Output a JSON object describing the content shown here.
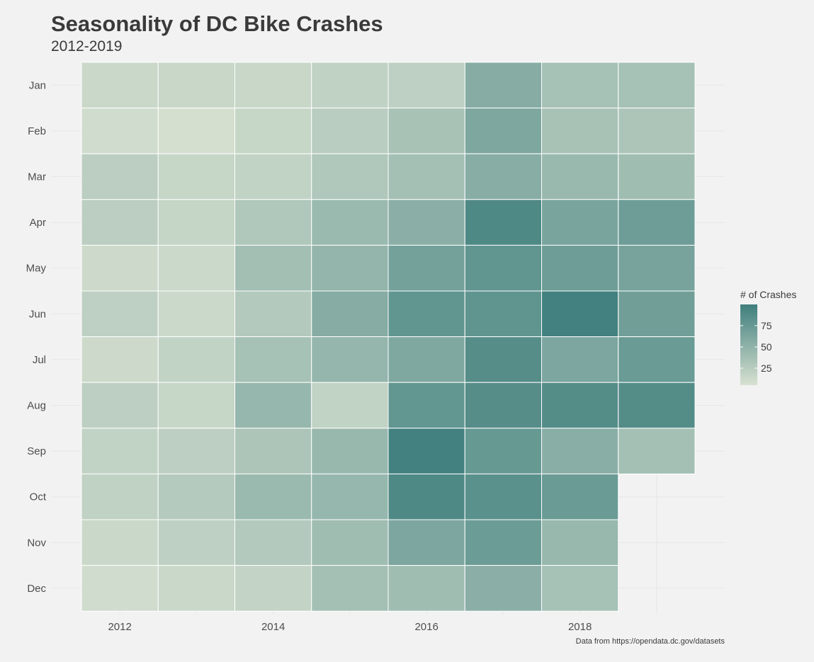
{
  "chart_data": {
    "type": "heatmap",
    "title": "Seasonality of DC Bike Crashes",
    "subtitle": "2012-2019",
    "caption": "Data from https://opendata.dc.gov/datasets",
    "x_tick_labels": [
      "2012",
      "2014",
      "2016",
      "2018"
    ],
    "x_tick_values": [
      2012,
      2014,
      2016,
      2018
    ],
    "x_categories": [
      2012,
      2013,
      2014,
      2015,
      2016,
      2017,
      2018,
      2019
    ],
    "y_categories": [
      "Jan",
      "Feb",
      "Mar",
      "Apr",
      "May",
      "Jun",
      "Jul",
      "Aug",
      "Sep",
      "Oct",
      "Nov",
      "Dec"
    ],
    "legend": {
      "title": "# of Crashes",
      "ticks": [
        25,
        50,
        75
      ],
      "min": 5,
      "max": 100,
      "low_color": "#d8e1d1",
      "high_color": "#3f7f7d"
    },
    "values": [
      [
        14,
        15,
        15,
        20,
        21,
        56,
        36,
        36
      ],
      [
        10,
        7,
        16,
        24,
        35,
        61,
        35,
        32
      ],
      [
        23,
        16,
        19,
        30,
        37,
        55,
        44,
        40
      ],
      [
        23,
        17,
        30,
        43,
        53,
        90,
        64,
        71
      ],
      [
        12,
        13,
        38,
        48,
        67,
        79,
        71,
        65
      ],
      [
        21,
        13,
        28,
        56,
        79,
        80,
        98,
        69
      ],
      [
        12,
        19,
        36,
        47,
        60,
        86,
        62,
        73
      ],
      [
        22,
        16,
        46,
        19,
        78,
        86,
        87,
        87
      ],
      [
        19,
        22,
        32,
        45,
        98,
        75,
        54,
        37
      ],
      [
        20,
        27,
        43,
        46,
        90,
        83,
        73,
        null
      ],
      [
        14,
        21,
        28,
        40,
        62,
        72,
        45,
        null
      ],
      [
        10,
        14,
        18,
        37,
        40,
        53,
        36,
        null
      ]
    ]
  }
}
